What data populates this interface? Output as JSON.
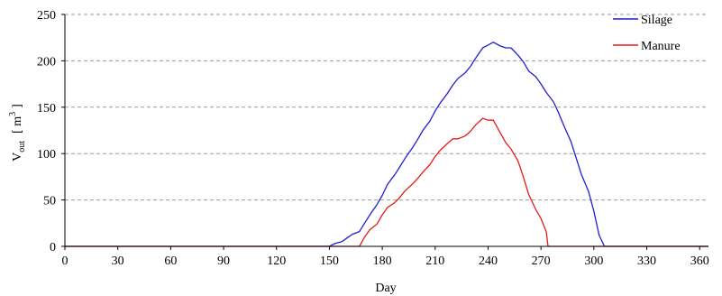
{
  "chart_data": {
    "type": "line",
    "title": "",
    "xlabel": "Day",
    "ylabel_main": "V",
    "ylabel_sub": "out",
    "ylabel_unit": "[ m",
    "ylabel_unit_sup": "3",
    "ylabel_unit_close": "]",
    "xlim": [
      0,
      365
    ],
    "ylim": [
      0,
      250
    ],
    "xticks": [
      0,
      30,
      60,
      90,
      120,
      150,
      180,
      210,
      240,
      270,
      300,
      330,
      360
    ],
    "yticks": [
      0,
      50,
      100,
      150,
      200,
      250
    ],
    "grid": "horizontal dashed",
    "legend_position": "top-right",
    "series": [
      {
        "name": "Silage",
        "color": "#1f1fd0",
        "points": [
          [
            0,
            0
          ],
          [
            150,
            0
          ],
          [
            153,
            3
          ],
          [
            157,
            5
          ],
          [
            160,
            9
          ],
          [
            163,
            13
          ],
          [
            167,
            16
          ],
          [
            170,
            25
          ],
          [
            173,
            34
          ],
          [
            177,
            45
          ],
          [
            180,
            55
          ],
          [
            183,
            67
          ],
          [
            187,
            77
          ],
          [
            190,
            86
          ],
          [
            193,
            95
          ],
          [
            197,
            106
          ],
          [
            200,
            115
          ],
          [
            203,
            125
          ],
          [
            207,
            135
          ],
          [
            210,
            146
          ],
          [
            213,
            155
          ],
          [
            217,
            165
          ],
          [
            220,
            174
          ],
          [
            223,
            181
          ],
          [
            227,
            187
          ],
          [
            230,
            194
          ],
          [
            233,
            203
          ],
          [
            237,
            214
          ],
          [
            240,
            217
          ],
          [
            243,
            220
          ],
          [
            247,
            216
          ],
          [
            250,
            214
          ],
          [
            253,
            214
          ],
          [
            257,
            206
          ],
          [
            260,
            199
          ],
          [
            263,
            189
          ],
          [
            267,
            183
          ],
          [
            270,
            175
          ],
          [
            273,
            166
          ],
          [
            277,
            156
          ],
          [
            280,
            144
          ],
          [
            283,
            130
          ],
          [
            287,
            113
          ],
          [
            290,
            95
          ],
          [
            293,
            77
          ],
          [
            297,
            59
          ],
          [
            300,
            38
          ],
          [
            303,
            12
          ],
          [
            306,
            0
          ],
          [
            365,
            0
          ]
        ]
      },
      {
        "name": "Manure",
        "color": "#e81818",
        "points": [
          [
            0,
            0
          ],
          [
            167,
            0
          ],
          [
            170,
            10
          ],
          [
            173,
            18
          ],
          [
            177,
            24
          ],
          [
            180,
            34
          ],
          [
            183,
            42
          ],
          [
            187,
            47
          ],
          [
            190,
            53
          ],
          [
            193,
            60
          ],
          [
            197,
            67
          ],
          [
            200,
            73
          ],
          [
            203,
            80
          ],
          [
            207,
            88
          ],
          [
            210,
            97
          ],
          [
            213,
            104
          ],
          [
            217,
            111
          ],
          [
            220,
            116
          ],
          [
            223,
            116
          ],
          [
            227,
            119
          ],
          [
            230,
            124
          ],
          [
            233,
            131
          ],
          [
            237,
            138
          ],
          [
            240,
            136
          ],
          [
            243,
            136
          ],
          [
            247,
            122
          ],
          [
            250,
            112
          ],
          [
            253,
            105
          ],
          [
            257,
            92
          ],
          [
            260,
            75
          ],
          [
            263,
            56
          ],
          [
            267,
            40
          ],
          [
            270,
            30
          ],
          [
            273,
            16
          ],
          [
            274,
            0
          ],
          [
            365,
            0
          ]
        ]
      }
    ]
  }
}
